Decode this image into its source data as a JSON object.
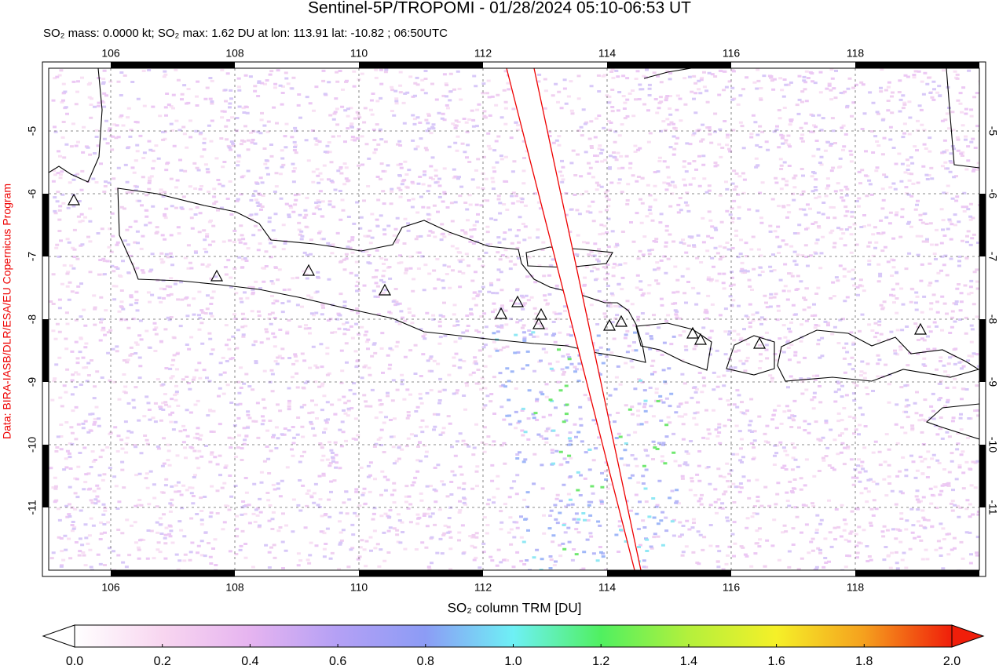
{
  "header": {
    "title": "Sentinel-5P/TROPOMI - 01/28/2024 05:10-06:53 UT",
    "subtitle": "SO₂ mass: 0.0000 kt; SO₂ max: 1.62 DU at lon: 113.91 lat: -10.82 ; 06:50UTC"
  },
  "map": {
    "xlim": [
      105,
      120
    ],
    "ylim": [
      -4,
      -12
    ],
    "xticks": [
      106,
      108,
      110,
      112,
      114,
      116,
      118
    ],
    "yticks": [
      -5,
      -6,
      -7,
      -8,
      -9,
      -10,
      -11
    ],
    "grid": true
  },
  "credit": "Data: BIRA-IASB/DLR/ESA/EU Copernicus Program",
  "colorbar": {
    "label": "SO₂ column TRM [DU]",
    "lim": [
      0,
      2
    ],
    "ticks": [
      {
        "value": 0,
        "label": "0.0"
      },
      0.2,
      0.4,
      0.6,
      0.8,
      {
        "value": 1,
        "label": "1.0"
      },
      1.2,
      1.4,
      1.6,
      1.8,
      {
        "value": 2,
        "label": "2.0"
      }
    ],
    "colors": [
      "#ffffff",
      "#f8d6f0",
      "#e6b4f0",
      "#b4a0f5",
      "#8c9cf5",
      "#6ef0f5",
      "#50f060",
      "#b4f03c",
      "#f5f028",
      "#f5a01e",
      "#f01e0a"
    ]
  }
}
